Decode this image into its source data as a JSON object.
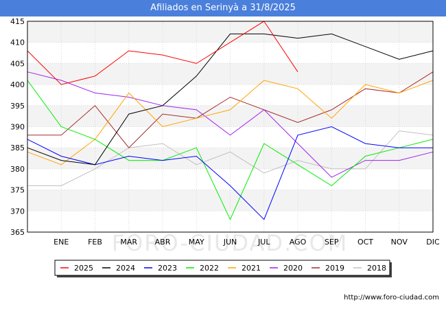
{
  "title": "Afiliados en Serinyà a 31/8/2025",
  "source": "http://www.foro-ciudad.com",
  "watermark": "FORO-CIUDAD.COM",
  "chart_data": {
    "type": "line",
    "title": "Afiliados en Serinyà a 31/8/2025",
    "categories": [
      "",
      "ENE",
      "FEB",
      "MAR",
      "ABR",
      "MAY",
      "JUN",
      "JUL",
      "AGO",
      "SEP",
      "OCT",
      "NOV",
      "DIC"
    ],
    "ylim": [
      365,
      415
    ],
    "yticks": [
      365,
      370,
      375,
      380,
      385,
      390,
      395,
      400,
      405,
      410,
      415
    ],
    "grid": true,
    "legend_position": "bottom",
    "series": [
      {
        "name": "2025",
        "color": "#ff0000",
        "values": [
          408,
          400,
          402,
          408,
          407,
          405,
          410,
          415,
          403,
          null,
          null,
          null,
          null
        ]
      },
      {
        "name": "2024",
        "color": "#000000",
        "values": [
          385,
          382,
          381,
          393,
          395,
          402,
          412,
          412,
          411,
          412,
          409,
          406,
          408
        ]
      },
      {
        "name": "2023",
        "color": "#0000ff",
        "values": [
          387,
          383,
          381,
          383,
          382,
          383,
          376,
          368,
          388,
          390,
          386,
          385,
          385
        ]
      },
      {
        "name": "2022",
        "color": "#00ee00",
        "values": [
          401,
          390,
          387,
          382,
          382,
          385,
          368,
          386,
          381,
          376,
          383,
          385,
          387
        ]
      },
      {
        "name": "2021",
        "color": "#ffa500",
        "values": [
          384,
          381,
          387,
          398,
          390,
          392,
          394,
          401,
          399,
          392,
          400,
          398,
          401
        ]
      },
      {
        "name": "2020",
        "color": "#a020f0",
        "values": [
          403,
          401,
          398,
          397,
          395,
          394,
          388,
          394,
          386,
          378,
          382,
          382,
          384
        ]
      },
      {
        "name": "2019",
        "color": "#a52a2a",
        "values": [
          388,
          388,
          395,
          385,
          393,
          392,
          397,
          394,
          391,
          394,
          399,
          398,
          403
        ]
      },
      {
        "name": "2018",
        "color": "#c0c0c0",
        "values": [
          376,
          376,
          380,
          385,
          386,
          381,
          384,
          379,
          382,
          380,
          380,
          389,
          388
        ]
      }
    ]
  }
}
